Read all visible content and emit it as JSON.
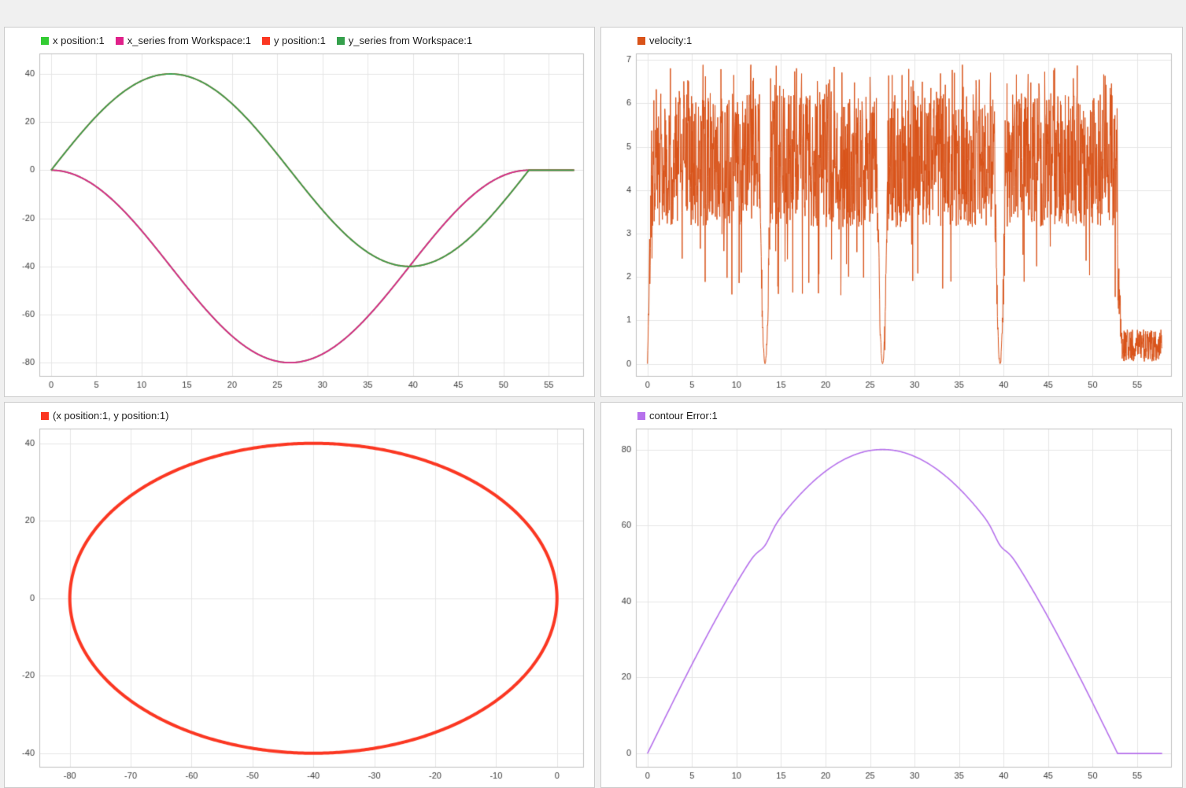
{
  "page": {
    "bg": "#f0f0f0",
    "panel_bg": "#ffffff",
    "panel_border": "#cbcbcb",
    "grid_color": "#e6e6e6",
    "axis_box_color": "#c0c0c0",
    "tick_label_color": "#3c3c3c"
  },
  "chart_data": [
    {
      "id": "positions",
      "type": "line",
      "legend": [
        {
          "label": "x position:1",
          "color": "#33cc33"
        },
        {
          "label": "x_series from Workspace:1",
          "color": "#e0218a"
        },
        {
          "label": "y position:1",
          "color": "#fb3722"
        },
        {
          "label": "y_series from Workspace:1",
          "color": "#35a04c"
        }
      ],
      "x_range": [
        -1.3,
        58.8
      ],
      "y_range": [
        -85.5,
        48.5
      ],
      "x_ticks": [
        0,
        5,
        10,
        15,
        20,
        25,
        30,
        35,
        40,
        45,
        50,
        55
      ],
      "y_ticks": [
        -80,
        -60,
        -40,
        -20,
        0,
        20,
        40
      ],
      "series": [
        {
          "name": "x position:1",
          "color": "#33cc33",
          "width": 1.8,
          "gen": {
            "kind": "one_minus_cos",
            "amplitude": -40,
            "period": 52.8,
            "t_end": 57.8,
            "dt": 0.1
          }
        },
        {
          "name": "x_series from Workspace:1",
          "color": "#e0218a",
          "width": 1.8,
          "gen": {
            "kind": "one_minus_cos",
            "amplitude": -40,
            "period": 52.8,
            "t_end": 57.8,
            "dt": 0.1
          }
        },
        {
          "name": "y position:1",
          "color": "#fb3722",
          "width": 1.8,
          "gen": {
            "kind": "sine",
            "amplitude": 40,
            "period": 52.8,
            "t_end": 57.8,
            "dt": 0.1
          }
        },
        {
          "name": "y_series from Workspace:1",
          "color": "#35a04c",
          "width": 1.8,
          "gen": {
            "kind": "sine",
            "amplitude": 40,
            "period": 52.8,
            "t_end": 57.8,
            "dt": 0.1
          }
        }
      ]
    },
    {
      "id": "velocity",
      "type": "line",
      "legend": [
        {
          "label": "velocity:1",
          "color": "#d95319"
        }
      ],
      "x_range": [
        -1.3,
        58.8
      ],
      "y_range": [
        -0.28,
        7.15
      ],
      "x_ticks": [
        0,
        5,
        10,
        15,
        20,
        25,
        30,
        35,
        40,
        45,
        50,
        55
      ],
      "y_ticks": [
        0,
        1,
        2,
        3,
        4,
        5,
        6,
        7
      ],
      "series": [
        {
          "name": "velocity:1",
          "color": "#d95319",
          "width": 1,
          "gen": {
            "kind": "noisy_speed",
            "dt": 0.03,
            "t_end": 57.8,
            "ramp_end": 0.5,
            "base_min": 3.15,
            "base_max": 6.2,
            "spike_prob": 0.05,
            "spike_max": 6.9,
            "low_prob": 0.035,
            "low_min": 1.5,
            "dips": [
              13.2,
              26.4,
              39.6
            ],
            "dip_halfwidth": 0.6,
            "cutoff": 52.8,
            "fall_width": 0.5,
            "tail_min": 0.05,
            "tail_max": 0.8,
            "seed": 1337
          }
        }
      ]
    },
    {
      "id": "xy-plot",
      "type": "line",
      "legend": [
        {
          "label": "(x position:1, y position:1)",
          "color": "#fb3722"
        }
      ],
      "x_range": [
        -85,
        4.3
      ],
      "y_range": [
        -43.5,
        43.8
      ],
      "x_ticks": [
        -80,
        -70,
        -60,
        -50,
        -40,
        -30,
        -20,
        -10,
        0
      ],
      "y_ticks": [
        -40,
        -20,
        0,
        20,
        40
      ],
      "series": [
        {
          "name": "(x position:1, y position:1)",
          "color": "#fb3722",
          "width": 4,
          "gen": {
            "kind": "circle",
            "cx": -40,
            "cy": 0,
            "r": 40,
            "step_deg": 0.5
          }
        }
      ]
    },
    {
      "id": "contour-error",
      "type": "line",
      "legend": [
        {
          "label": "contour Error:1",
          "color": "#b671ec"
        }
      ],
      "x_range": [
        -1.3,
        58.8
      ],
      "y_range": [
        -3.5,
        85.5
      ],
      "x_ticks": [
        0,
        5,
        10,
        15,
        20,
        25,
        30,
        35,
        40,
        45,
        50,
        55
      ],
      "y_ticks": [
        0,
        20,
        40,
        60,
        80
      ],
      "series": [
        {
          "name": "contour Error:1",
          "color": "#b671ec",
          "width": 1.6,
          "gen": {
            "kind": "half_sine",
            "amplitude": 80,
            "period": 52.8,
            "t_end": 57.8,
            "dt": 0.1,
            "notches": [
              {
                "t": 13.2,
                "depth": 1.8,
                "width": 0.9
              },
              {
                "t": 39.6,
                "depth": 1.8,
                "width": 0.9
              }
            ]
          }
        }
      ]
    }
  ]
}
